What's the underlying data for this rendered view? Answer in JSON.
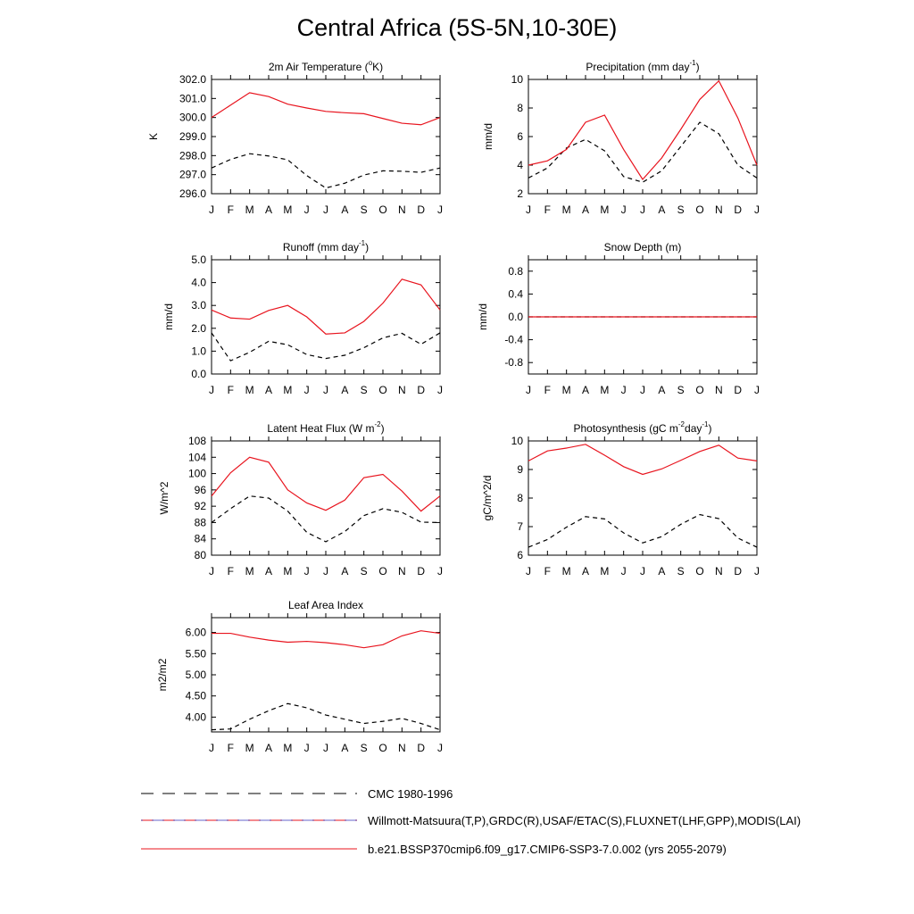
{
  "title": "Central Africa (5S-5N,10-30E)",
  "months": [
    "J",
    "F",
    "M",
    "A",
    "M",
    "J",
    "J",
    "A",
    "S",
    "O",
    "N",
    "D",
    "J"
  ],
  "colors": {
    "model": "#e8141e",
    "obs": "#000000",
    "obs_alt": "#0000aa"
  },
  "legend": [
    {
      "label": "CMC 1980-1996",
      "style": "dashed"
    },
    {
      "label": "Willmott-Matsuura(T,P),GRDC(R),USAF/ETAC(S),FLUXNET(LHF,GPP),MODIS(LAI)",
      "style": "dashed"
    },
    {
      "label": "b.e21.BSSP370cmip6.f09_g17.CMIP6-SSP3-7.0.002 (yrs 2055-2079)",
      "style": "solid"
    }
  ],
  "chart_data": [
    {
      "type": "line",
      "title": "2m Air Temperature (°K)",
      "title_parts": [
        "2m Air Temperature (",
        "o",
        "K)"
      ],
      "ylabel": "K",
      "ylim": [
        296.0,
        302.0
      ],
      "yticks": [
        "296.0",
        "297.0",
        "298.0",
        "299.0",
        "300.0",
        "301.0",
        "302.0"
      ],
      "x": [
        "J",
        "F",
        "M",
        "A",
        "M",
        "J",
        "J",
        "A",
        "S",
        "O",
        "N",
        "D",
        "J"
      ],
      "series": [
        {
          "values": [
            300.0,
            300.65,
            301.3,
            301.1,
            300.7,
            300.5,
            300.32,
            300.25,
            300.2,
            299.95,
            299.7,
            299.62,
            300.0
          ]
        },
        {
          "values": [
            297.35,
            297.8,
            298.1,
            297.98,
            297.78,
            296.95,
            296.3,
            296.55,
            296.98,
            297.2,
            297.18,
            297.12,
            297.35
          ]
        }
      ]
    },
    {
      "type": "line",
      "title": "Precipitation (mm day-1)",
      "title_parts": [
        "Precipitation (mm day",
        "-1",
        ")"
      ],
      "ylabel": "mm/d",
      "ylim": [
        2,
        10
      ],
      "yticks": [
        "2",
        "4",
        "6",
        "8",
        "10"
      ],
      "x": [
        "J",
        "F",
        "M",
        "A",
        "M",
        "J",
        "J",
        "A",
        "S",
        "O",
        "N",
        "D",
        "J"
      ],
      "series": [
        {
          "values": [
            4.0,
            4.3,
            5.1,
            7.0,
            7.5,
            5.1,
            3.0,
            4.5,
            6.5,
            8.6,
            9.9,
            7.3,
            4.0
          ]
        },
        {
          "values": [
            3.1,
            3.8,
            5.2,
            5.8,
            5.0,
            3.2,
            2.8,
            3.6,
            5.3,
            7.0,
            6.2,
            4.0,
            3.1
          ]
        }
      ]
    },
    {
      "type": "line",
      "title": "Runoff (mm day-1)",
      "title_parts": [
        "Runoff (mm day",
        "-1",
        ")"
      ],
      "ylabel": "mm/d",
      "ylim": [
        0.0,
        5.0
      ],
      "yticks": [
        "0.0",
        "1.0",
        "2.0",
        "3.0",
        "4.0",
        "5.0"
      ],
      "x": [
        "J",
        "F",
        "M",
        "A",
        "M",
        "J",
        "J",
        "A",
        "S",
        "O",
        "N",
        "D",
        "J"
      ],
      "series": [
        {
          "values": [
            2.8,
            2.45,
            2.4,
            2.78,
            3.0,
            2.5,
            1.75,
            1.8,
            2.3,
            3.1,
            4.15,
            3.9,
            2.8
          ]
        },
        {
          "values": [
            1.8,
            0.58,
            0.95,
            1.43,
            1.28,
            0.85,
            0.68,
            0.82,
            1.15,
            1.58,
            1.78,
            1.3,
            1.8
          ]
        }
      ]
    },
    {
      "type": "line",
      "title": "Snow Depth (m)",
      "title_parts": [
        "Snow Depth (m)"
      ],
      "ylabel": "mm/d",
      "ylim": [
        -1.0,
        1.0
      ],
      "yticks": [
        "-0.8",
        "-0.4",
        "0.0",
        "0.4",
        "0.8"
      ],
      "ytick_values": [
        -0.8,
        -0.4,
        0.0,
        0.4,
        0.8
      ],
      "x": [
        "J",
        "F",
        "M",
        "A",
        "M",
        "J",
        "J",
        "A",
        "S",
        "O",
        "N",
        "D",
        "J"
      ],
      "series": [
        {
          "values": [
            0,
            0,
            0,
            0,
            0,
            0,
            0,
            0,
            0,
            0,
            0,
            0,
            0
          ]
        },
        {
          "values": [
            0,
            0,
            0,
            0,
            0,
            0,
            0,
            0,
            0,
            0,
            0,
            0,
            0
          ]
        }
      ]
    },
    {
      "type": "line",
      "title": "Latent Heat Flux (W m-2)",
      "title_parts": [
        "Latent Heat Flux (W m",
        "-2",
        ")"
      ],
      "ylabel": "W/m^2",
      "ylim": [
        80,
        108
      ],
      "yticks": [
        "80",
        "84",
        "88",
        "92",
        "96",
        "100",
        "104",
        "108"
      ],
      "x": [
        "J",
        "F",
        "M",
        "A",
        "M",
        "J",
        "J",
        "A",
        "S",
        "O",
        "N",
        "D",
        "J"
      ],
      "series": [
        {
          "values": [
            94.5,
            100.2,
            104.0,
            102.8,
            96.0,
            92.8,
            91.0,
            93.5,
            99.0,
            99.8,
            95.7,
            90.8,
            94.5
          ]
        },
        {
          "values": [
            88.0,
            91.4,
            94.5,
            94.0,
            90.8,
            85.6,
            83.3,
            85.8,
            89.7,
            91.4,
            90.5,
            88.1,
            88.0
          ]
        }
      ]
    },
    {
      "type": "line",
      "title": "Photosynthesis (gC m-2day-1)",
      "title_parts": [
        "Photosynthesis (gC m",
        "-2",
        "day",
        "-1",
        ")"
      ],
      "ylabel": "gC/m^2/d",
      "ylim": [
        6,
        10
      ],
      "yticks": [
        "6",
        "7",
        "8",
        "9",
        "10"
      ],
      "x": [
        "J",
        "F",
        "M",
        "A",
        "M",
        "J",
        "J",
        "A",
        "S",
        "O",
        "N",
        "D",
        "J"
      ],
      "series": [
        {
          "values": [
            9.3,
            9.65,
            9.75,
            9.88,
            9.5,
            9.1,
            8.83,
            9.02,
            9.32,
            9.63,
            9.85,
            9.4,
            9.3
          ]
        },
        {
          "values": [
            6.28,
            6.55,
            6.98,
            7.35,
            7.27,
            6.78,
            6.43,
            6.65,
            7.08,
            7.42,
            7.28,
            6.6,
            6.28
          ]
        }
      ]
    },
    {
      "type": "line",
      "title": "Leaf Area Index",
      "title_parts": [
        "Leaf Area Index"
      ],
      "ylabel": "m2/m2",
      "ylim": [
        3.65,
        6.35
      ],
      "yticks": [
        "4.00",
        "4.50",
        "5.00",
        "5.50",
        "6.00"
      ],
      "ytick_values": [
        4.0,
        4.5,
        5.0,
        5.5,
        6.0
      ],
      "x": [
        "J",
        "F",
        "M",
        "A",
        "M",
        "J",
        "J",
        "A",
        "S",
        "O",
        "N",
        "D",
        "J"
      ],
      "series": [
        {
          "values": [
            5.98,
            5.98,
            5.89,
            5.82,
            5.77,
            5.79,
            5.76,
            5.71,
            5.64,
            5.71,
            5.92,
            6.04,
            5.98
          ]
        },
        {
          "values": [
            3.7,
            3.72,
            3.95,
            4.15,
            4.32,
            4.22,
            4.05,
            3.95,
            3.85,
            3.9,
            3.97,
            3.85,
            3.7
          ]
        }
      ]
    }
  ]
}
